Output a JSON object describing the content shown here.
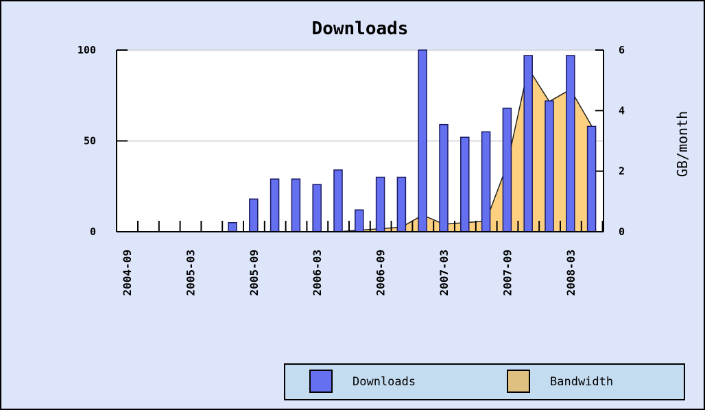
{
  "chart_data": {
    "type": "bar",
    "title": "Downloads",
    "y2_label": "GB/month",
    "categories": [
      "2004-09",
      null,
      null,
      "2005-03",
      null,
      null,
      "2005-09",
      null,
      null,
      "2006-03",
      null,
      null,
      "2006-09",
      null,
      null,
      "2007-03",
      null,
      null,
      "2007-09",
      null,
      null,
      "2008-03",
      null
    ],
    "series": [
      {
        "name": "Downloads",
        "type": "bar",
        "color": "#6470f0",
        "axis": "y",
        "values": [
          0,
          0,
          0,
          0,
          0,
          5,
          18,
          29,
          29,
          26,
          34,
          12,
          30,
          30,
          100,
          59,
          52,
          55,
          68,
          97,
          72,
          97,
          58
        ]
      },
      {
        "name": "Bandwidth",
        "type": "area",
        "color": "#fdd080",
        "legend_color": "#e0c080",
        "axis": "y2",
        "values": [
          0,
          0,
          0,
          0,
          0,
          0,
          0,
          0,
          0,
          0,
          0,
          0.05,
          0.1,
          0.15,
          0.55,
          0.25,
          0.3,
          0.35,
          2.2,
          5.4,
          4.3,
          4.7,
          3.5
        ]
      }
    ],
    "ylim": [
      0,
      100
    ],
    "yticks": [
      0,
      50,
      100
    ],
    "y2lim": [
      0,
      6
    ],
    "y2ticks": [
      0,
      2,
      4,
      6
    ],
    "grid": true
  }
}
